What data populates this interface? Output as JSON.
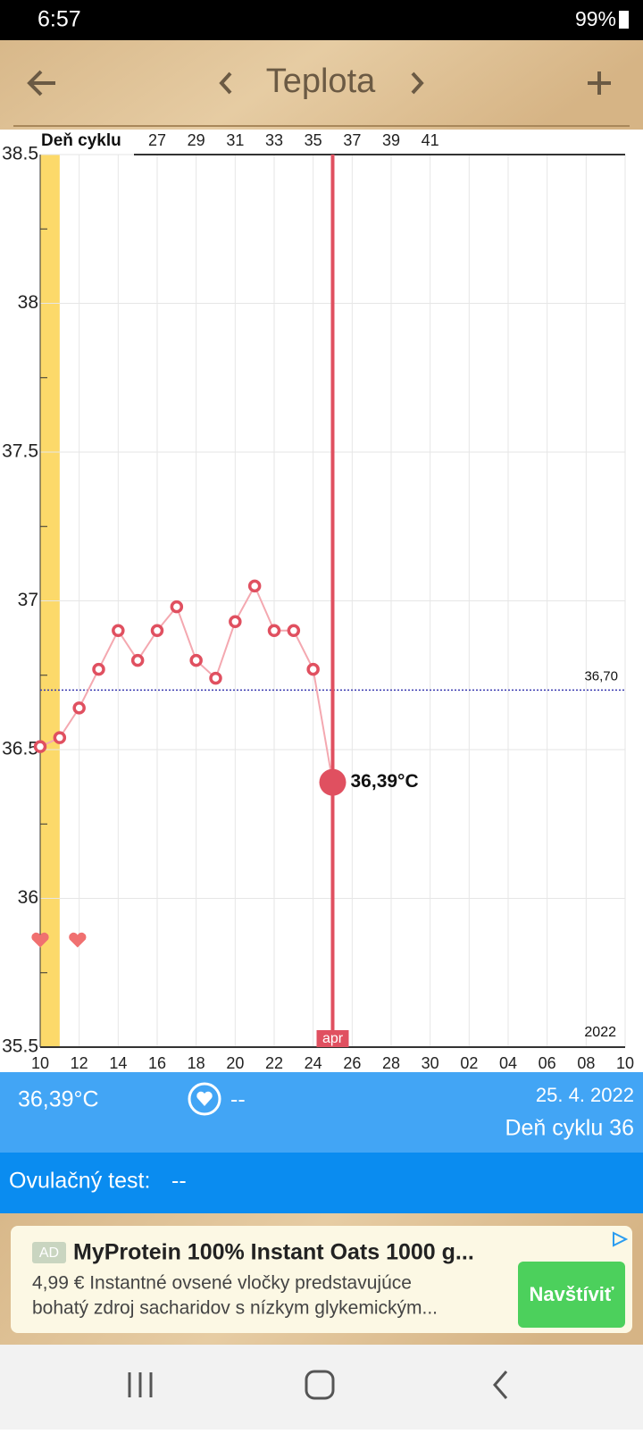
{
  "status": {
    "time": "6:57",
    "battery": "99%"
  },
  "header": {
    "title": "Teplota"
  },
  "chart_data": {
    "type": "line",
    "cycle_axis_label": "Deň cyklu",
    "cycle_days": [
      27,
      29,
      31,
      33,
      35,
      37,
      39,
      41
    ],
    "categories": [
      "10",
      null,
      "12",
      null,
      "14",
      null,
      "16",
      null,
      "18",
      null,
      "20",
      null,
      "22",
      null,
      "24",
      null,
      "26",
      null,
      "28",
      null,
      "30",
      null,
      "02",
      null,
      "04",
      null,
      "06",
      null,
      "08",
      null,
      "10"
    ],
    "series": [
      {
        "color": "#e05060",
        "values": [
          36.51,
          36.54,
          36.64,
          36.77,
          36.9,
          36.8,
          36.9,
          36.98,
          36.8,
          36.74,
          36.93,
          37.05,
          36.9,
          36.9,
          36.77,
          36.39,
          null,
          null,
          null,
          null,
          null,
          null,
          null,
          null,
          null,
          null,
          null,
          null,
          null,
          null,
          null
        ],
        "value_labels": [
          null,
          null,
          null,
          null,
          null,
          null,
          null,
          null,
          null,
          null,
          null,
          null,
          null,
          null,
          null,
          "36,39°C",
          null,
          null,
          null,
          null,
          null,
          null,
          null,
          null,
          null,
          null,
          null,
          null,
          null,
          null,
          null
        ]
      }
    ],
    "ylim": [
      35.5,
      38.5
    ],
    "yticks": [
      35.5,
      36,
      36.5,
      37,
      37.5,
      38,
      38.5
    ],
    "reference_line": {
      "value": 36.7,
      "label": "36,70"
    },
    "month_label": "apr",
    "year_label": "2022",
    "grid": true
  },
  "info": {
    "temperature": "36,39°C",
    "intercourse": "--",
    "date": "25. 4. 2022",
    "cycle_day": "Deň cyklu 36"
  },
  "ovulation": {
    "label": "Ovulačný test:",
    "value": "--"
  },
  "ad": {
    "badge": "AD",
    "title": "MyProtein 100% Instant Oats 1000 g...",
    "line1": "4,99 € Instantné ovsené vločky predstavujúce",
    "line2": "bohatý zdroj sacharidov s nízkym glykemickým...",
    "button": "Navštíviť"
  }
}
